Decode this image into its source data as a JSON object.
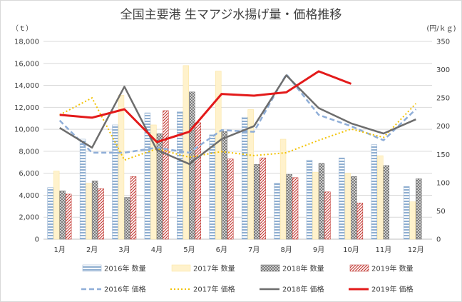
{
  "chart_data": {
    "type": "bar",
    "title": "全国主要港 生マアジ水揚げ量・価格推移",
    "left_axis_unit": "（ｔ）",
    "right_axis_unit": "(円/ｋｇ)",
    "categories": [
      "1月",
      "2月",
      "3月",
      "4月",
      "5月",
      "6月",
      "7月",
      "8月",
      "9月",
      "10月",
      "11月",
      "12月"
    ],
    "y_left": {
      "min": 0,
      "max": 18000,
      "step": 2000,
      "ticks": [
        "0",
        "2,000",
        "4,000",
        "6,000",
        "8,000",
        "10,000",
        "12,000",
        "14,000",
        "16,000",
        "18,000"
      ]
    },
    "y_right": {
      "min": 0,
      "max": 350,
      "step": 50,
      "ticks": [
        "0",
        "50",
        "100",
        "150",
        "200",
        "250",
        "300",
        "350"
      ]
    },
    "grid": true,
    "legend_position": "bottom",
    "bar_series": [
      {
        "name": "2016年 数量",
        "values": [
          4700,
          9100,
          10400,
          11500,
          11600,
          9500,
          11100,
          5100,
          7200,
          7400,
          8600,
          4800
        ]
      },
      {
        "name": "2017年 数量",
        "values": [
          6200,
          5100,
          13100,
          10400,
          15800,
          15300,
          11800,
          9100,
          6100,
          6000,
          7600,
          3400
        ]
      },
      {
        "name": "2018年 数量",
        "values": [
          4400,
          5300,
          3800,
          9600,
          13400,
          9800,
          6800,
          5900,
          6900,
          5700,
          6700,
          5500
        ]
      },
      {
        "name": "2019年 数量",
        "values": [
          4100,
          4600,
          5700,
          11700,
          10600,
          7300,
          7400,
          5600,
          4300,
          3300,
          null,
          null
        ]
      }
    ],
    "line_series": [
      {
        "name": "2016年 価格",
        "values": [
          210,
          153,
          153,
          162,
          153,
          193,
          190,
          292,
          220,
          200,
          175,
          230
        ]
      },
      {
        "name": "2017年 価格",
        "values": [
          220,
          250,
          140,
          160,
          145,
          155,
          148,
          153,
          175,
          195,
          180,
          240
        ]
      },
      {
        "name": "2018年 価格",
        "values": [
          197,
          162,
          270,
          158,
          133,
          177,
          200,
          290,
          232,
          205,
          187,
          212
        ]
      },
      {
        "name": "2019年 価格",
        "values": [
          220,
          215,
          230,
          172,
          190,
          257,
          254,
          260,
          297,
          275,
          null,
          null
        ]
      }
    ]
  }
}
